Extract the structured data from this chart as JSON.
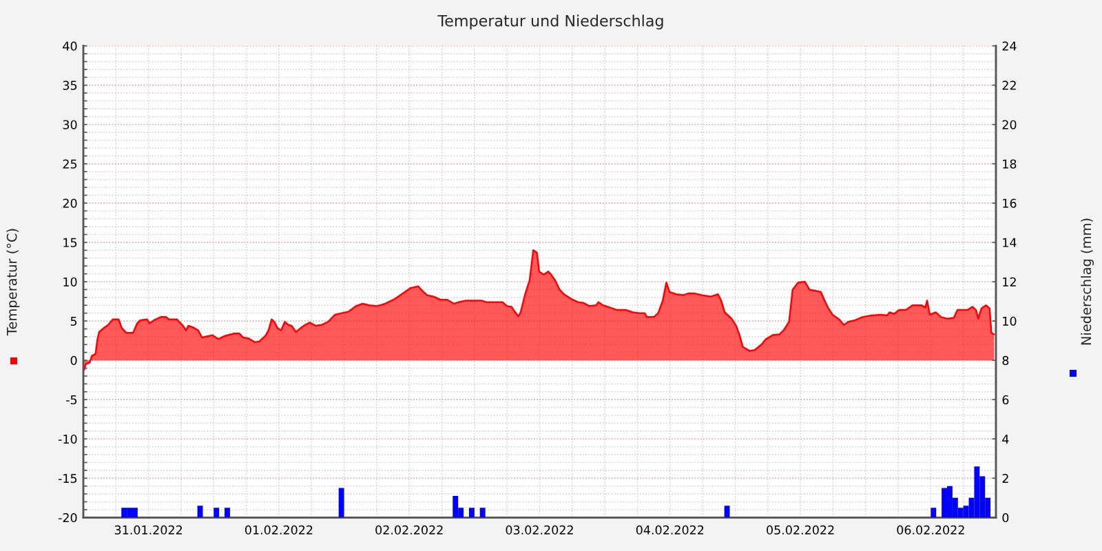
{
  "chart_data": {
    "type": "area",
    "title": "Temperatur und Niederschlag",
    "ylabel": "Temperatur (°C)",
    "y2label": "Niederschlag (mm)",
    "xlim": [
      "2022-01-31T00:00",
      "2022-02-07T00:00"
    ],
    "xticks": [
      {
        "value": "2022-01-31T00:00",
        "label": null
      },
      {
        "value": "2022-01-31T06:00",
        "label": null
      },
      {
        "value": "2022-01-31T12:00",
        "label": "31.01.2022"
      },
      {
        "value": "2022-01-31T18:00",
        "label": null
      },
      {
        "value": "2022-02-01T00:00",
        "label": null
      },
      {
        "value": "2022-02-01T06:00",
        "label": null
      },
      {
        "value": "2022-02-01T12:00",
        "label": "01.02.2022"
      },
      {
        "value": "2022-02-01T18:00",
        "label": null
      },
      {
        "value": "2022-02-02T00:00",
        "label": null
      },
      {
        "value": "2022-02-02T06:00",
        "label": null
      },
      {
        "value": "2022-02-02T12:00",
        "label": "02.02.2022"
      },
      {
        "value": "2022-02-02T18:00",
        "label": null
      },
      {
        "value": "2022-02-03T00:00",
        "label": null
      },
      {
        "value": "2022-02-03T06:00",
        "label": null
      },
      {
        "value": "2022-02-03T12:00",
        "label": "03.02.2022"
      },
      {
        "value": "2022-02-03T18:00",
        "label": null
      },
      {
        "value": "2022-02-04T00:00",
        "label": null
      },
      {
        "value": "2022-02-04T06:00",
        "label": null
      },
      {
        "value": "2022-02-04T12:00",
        "label": "04.02.2022"
      },
      {
        "value": "2022-02-04T18:00",
        "label": null
      },
      {
        "value": "2022-02-05T00:00",
        "label": null
      },
      {
        "value": "2022-02-05T06:00",
        "label": null
      },
      {
        "value": "2022-02-05T12:00",
        "label": "05.02.2022"
      },
      {
        "value": "2022-02-05T18:00",
        "label": null
      },
      {
        "value": "2022-02-06T00:00",
        "label": null
      },
      {
        "value": "2022-02-06T06:00",
        "label": null
      },
      {
        "value": "2022-02-06T12:00",
        "label": "06.02.2022"
      },
      {
        "value": "2022-02-06T18:00",
        "label": null
      }
    ],
    "ylim": [
      -20,
      40
    ],
    "yticks": [
      -20,
      {
        "value": -19,
        "label": null
      },
      {
        "value": -18,
        "label": null
      },
      {
        "value": -17,
        "label": null
      },
      {
        "value": -16,
        "label": null
      },
      -15,
      {
        "value": -14,
        "label": null
      },
      {
        "value": -13,
        "label": null
      },
      {
        "value": -12,
        "label": null
      },
      {
        "value": -11,
        "label": null
      },
      -10,
      {
        "value": -9,
        "label": null
      },
      {
        "value": -8,
        "label": null
      },
      {
        "value": -7,
        "label": null
      },
      {
        "value": -6,
        "label": null
      },
      -5,
      {
        "value": -4,
        "label": null
      },
      {
        "value": -3,
        "label": null
      },
      {
        "value": -2,
        "label": null
      },
      {
        "value": -1,
        "label": null
      },
      0,
      {
        "value": 1,
        "label": null
      },
      {
        "value": 2,
        "label": null
      },
      {
        "value": 3,
        "label": null
      },
      {
        "value": 4,
        "label": null
      },
      5,
      {
        "value": 6,
        "label": null
      },
      {
        "value": 7,
        "label": null
      },
      {
        "value": 8,
        "label": null
      },
      {
        "value": 9,
        "label": null
      },
      10,
      {
        "value": 11,
        "label": null
      },
      {
        "value": 12,
        "label": null
      },
      {
        "value": 13,
        "label": null
      },
      {
        "value": 14,
        "label": null
      },
      15,
      {
        "value": 16,
        "label": null
      },
      {
        "value": 17,
        "label": null
      },
      {
        "value": 18,
        "label": null
      },
      {
        "value": 19,
        "label": null
      },
      20,
      {
        "value": 21,
        "label": null
      },
      {
        "value": 22,
        "label": null
      },
      {
        "value": 23,
        "label": null
      },
      {
        "value": 24,
        "label": null
      },
      25,
      {
        "value": 26,
        "label": null
      },
      {
        "value": 27,
        "label": null
      },
      {
        "value": 28,
        "label": null
      },
      {
        "value": 29,
        "label": null
      },
      30,
      {
        "value": 31,
        "label": null
      },
      {
        "value": 32,
        "label": null
      },
      {
        "value": 33,
        "label": null
      },
      {
        "value": 34,
        "label": null
      },
      35,
      {
        "value": 36,
        "label": null
      },
      {
        "value": 37,
        "label": null
      },
      {
        "value": 38,
        "label": null
      },
      {
        "value": 39,
        "label": null
      },
      40
    ],
    "y2lim": [
      0,
      24
    ],
    "y2ticks": [
      0,
      2,
      4,
      6,
      8,
      10,
      12,
      14,
      16,
      18,
      20,
      22,
      24
    ],
    "grid": true,
    "series": [
      {
        "color": "#ff0000",
        "x": [
          "2022-01-31T00:10",
          "2022-01-31T00:25",
          "2022-01-31T01:10",
          "2022-01-31T01:35",
          "2022-01-31T02:15",
          "2022-01-31T02:35",
          "2022-01-31T02:55",
          "2022-01-31T03:45",
          "2022-01-31T04:35",
          "2022-01-31T05:25",
          "2022-01-31T06:30",
          "2022-01-31T07:05",
          "2022-01-31T07:55",
          "2022-01-31T09:10",
          "2022-01-31T09:55",
          "2022-01-31T10:30",
          "2022-01-31T11:45",
          "2022-01-31T12:10",
          "2022-01-31T13:00",
          "2022-01-31T14:15",
          "2022-01-31T15:15",
          "2022-01-31T15:45",
          "2022-01-31T17:15",
          "2022-01-31T18:20",
          "2022-01-31T18:55",
          "2022-01-31T19:20",
          "2022-01-31T20:10",
          "2022-01-31T21:10",
          "2022-01-31T21:50",
          "2022-01-31T23:10",
          "2022-01-31T23:45",
          "2022-02-01T00:50",
          "2022-02-01T02:05",
          "2022-02-01T03:45",
          "2022-02-01T04:45",
          "2022-02-01T05:25",
          "2022-02-01T06:20",
          "2022-02-01T07:35",
          "2022-02-01T08:25",
          "2022-02-01T09:30",
          "2022-02-01T10:05",
          "2022-02-01T10:40",
          "2022-02-01T11:10",
          "2022-02-01T11:45",
          "2022-02-01T12:25",
          "2022-02-01T13:05",
          "2022-02-01T13:45",
          "2022-02-01T14:20",
          "2022-02-01T15:10",
          "2022-02-01T16:00",
          "2022-02-01T16:50",
          "2022-02-01T17:40",
          "2022-02-01T18:45",
          "2022-02-01T19:50",
          "2022-02-01T21:05",
          "2022-02-01T22:20",
          "2022-02-01T23:35",
          "2022-02-02T00:50",
          "2022-02-02T02:10",
          "2022-02-02T03:25",
          "2022-02-02T04:40",
          "2022-02-02T06:05",
          "2022-02-02T07:35",
          "2022-02-02T09:20",
          "2022-02-02T11:00",
          "2022-02-02T12:15",
          "2022-02-02T13:40",
          "2022-02-02T14:20",
          "2022-02-02T15:15",
          "2022-02-02T16:30",
          "2022-02-02T17:45",
          "2022-02-02T19:00",
          "2022-02-02T20:15",
          "2022-02-02T21:05",
          "2022-02-02T22:25",
          "2022-02-03T01:20",
          "2022-02-03T02:10",
          "2022-02-03T05:10",
          "2022-02-03T06:00",
          "2022-02-03T06:50",
          "2022-02-03T07:25",
          "2022-02-03T08:05",
          "2022-02-03T08:30",
          "2022-02-03T09:20",
          "2022-02-03T10:10",
          "2022-02-03T10:50",
          "2022-02-03T11:30",
          "2022-02-03T11:55",
          "2022-02-03T12:45",
          "2022-02-03T13:35",
          "2022-02-03T14:00",
          "2022-02-03T14:50",
          "2022-02-03T15:40",
          "2022-02-03T16:30",
          "2022-02-03T17:50",
          "2022-02-03T19:05",
          "2022-02-03T20:05",
          "2022-02-03T21:10",
          "2022-02-03T22:25",
          "2022-02-03T22:50",
          "2022-02-03T23:40",
          "2022-02-04T01:00",
          "2022-02-04T02:15",
          "2022-02-04T03:55",
          "2022-02-04T05:10",
          "2022-02-04T06:25",
          "2022-02-04T07:20",
          "2022-02-04T07:45",
          "2022-02-04T09:00",
          "2022-02-04T09:50",
          "2022-02-04T10:40",
          "2022-02-04T11:20",
          "2022-02-04T11:55",
          "2022-02-04T13:10",
          "2022-02-04T14:30",
          "2022-02-04T15:20",
          "2022-02-04T16:35",
          "2022-02-04T17:50",
          "2022-02-04T19:30",
          "2022-02-04T20:50",
          "2022-02-04T21:25",
          "2022-02-04T22:05",
          "2022-02-04T23:20",
          "2022-02-05T00:10",
          "2022-02-05T00:45",
          "2022-02-05T01:25",
          "2022-02-05T02:40",
          "2022-02-05T03:35",
          "2022-02-05T04:50",
          "2022-02-05T05:40",
          "2022-02-05T06:55",
          "2022-02-05T08:10",
          "2022-02-05T09:00",
          "2022-02-05T09:55",
          "2022-02-05T10:35",
          "2022-02-05T11:35",
          "2022-02-05T12:50",
          "2022-02-05T13:40",
          "2022-02-05T15:45",
          "2022-02-05T16:40",
          "2022-02-05T17:05",
          "2022-02-05T17:55",
          "2022-02-05T19:10",
          "2022-02-05T20:00",
          "2022-02-05T20:50",
          "2022-02-05T22:05",
          "2022-02-05T23:25",
          "2022-02-06T01:05",
          "2022-02-06T02:45",
          "2022-02-06T04:00",
          "2022-02-06T04:25",
          "2022-02-06T05:15",
          "2022-02-06T06:10",
          "2022-02-06T07:25",
          "2022-02-06T08:40",
          "2022-02-06T10:20",
          "2022-02-06T11:00",
          "2022-02-06T11:20",
          "2022-02-06T11:50",
          "2022-02-06T12:55",
          "2022-02-06T13:55",
          "2022-02-06T15:00",
          "2022-02-06T16:15",
          "2022-02-06T16:55",
          "2022-02-06T18:45",
          "2022-02-06T19:40",
          "2022-02-06T20:20",
          "2022-02-06T20:45",
          "2022-02-06T21:20",
          "2022-02-06T22:10",
          "2022-02-06T22:50",
          "2022-02-06T23:10",
          "2022-02-06T23:40"
        ],
        "values": [
          -1.2,
          -0.5,
          -0.3,
          0.6,
          0.8,
          2.6,
          3.6,
          4.1,
          4.5,
          5.2,
          5.2,
          4.1,
          3.5,
          3.5,
          4.7,
          5.1,
          5.2,
          4.7,
          5.1,
          5.5,
          5.5,
          5.2,
          5.2,
          4.4,
          3.8,
          4.4,
          4.2,
          3.8,
          2.9,
          3.1,
          3.2,
          2.7,
          3.1,
          3.4,
          3.4,
          2.9,
          2.8,
          2.3,
          2.4,
          3.1,
          3.8,
          5.2,
          4.9,
          4.1,
          3.8,
          4.9,
          4.5,
          4.4,
          3.6,
          4.1,
          4.5,
          4.8,
          4.4,
          4.5,
          4.9,
          5.8,
          6.0,
          6.2,
          6.9,
          7.2,
          7.0,
          6.9,
          7.2,
          7.8,
          8.6,
          9.2,
          9.4,
          8.9,
          8.3,
          8.1,
          7.7,
          7.7,
          7.2,
          7.4,
          7.6,
          7.6,
          7.4,
          7.4,
          6.9,
          6.8,
          6.2,
          5.6,
          6.1,
          8.4,
          10.2,
          14.0,
          13.7,
          11.3,
          10.9,
          11.3,
          11.0,
          10.2,
          9.0,
          8.4,
          7.8,
          7.4,
          7.3,
          6.9,
          7.0,
          7.4,
          7.0,
          6.7,
          6.4,
          6.4,
          6.1,
          6.0,
          6.0,
          5.5,
          5.5,
          6.0,
          7.6,
          9.9,
          8.7,
          8.4,
          8.3,
          8.5,
          8.5,
          8.3,
          8.1,
          8.4,
          7.6,
          6.1,
          5.3,
          4.4,
          3.3,
          1.7,
          1.2,
          1.3,
          2.0,
          2.7,
          3.2,
          3.3,
          3.9,
          4.9,
          9.0,
          9.9,
          10.0,
          9.0,
          8.7,
          7.3,
          6.7,
          5.8,
          5.2,
          4.5,
          4.9,
          5.1,
          5.5,
          5.7,
          5.8,
          5.7,
          6.1,
          5.9,
          6.4,
          6.4,
          7.0,
          7.0,
          6.7,
          7.6,
          5.8,
          6.1,
          5.5,
          5.3,
          5.4,
          6.4,
          6.4,
          6.8,
          6.4,
          5.3,
          6.6,
          7.0,
          6.6,
          3.5,
          3.3
        ]
      },
      {
        "type": "bar",
        "axis": "y2",
        "color": "#0000ff",
        "x": [
          "2022-01-31T07:30",
          "2022-01-31T08:30",
          "2022-01-31T09:30",
          "2022-01-31T21:30",
          "2022-02-01T00:30",
          "2022-02-01T02:30",
          "2022-02-01T23:30",
          "2022-02-02T20:30",
          "2022-02-02T21:30",
          "2022-02-02T23:30",
          "2022-02-03T01:30",
          "2022-02-04T22:30",
          "2022-02-06T12:30",
          "2022-02-06T14:30",
          "2022-02-06T15:30",
          "2022-02-06T16:30",
          "2022-02-06T17:30",
          "2022-02-06T18:30",
          "2022-02-06T19:30",
          "2022-02-06T20:30",
          "2022-02-06T21:30",
          "2022-02-06T22:30"
        ],
        "values": [
          0.5,
          0.5,
          0.5,
          0.6,
          0.5,
          0.5,
          1.5,
          1.1,
          0.5,
          0.5,
          0.5,
          0.6,
          0.5,
          1.5,
          1.6,
          1.0,
          0.5,
          0.6,
          1.0,
          2.6,
          2.1,
          1.0
        ]
      }
    ]
  }
}
